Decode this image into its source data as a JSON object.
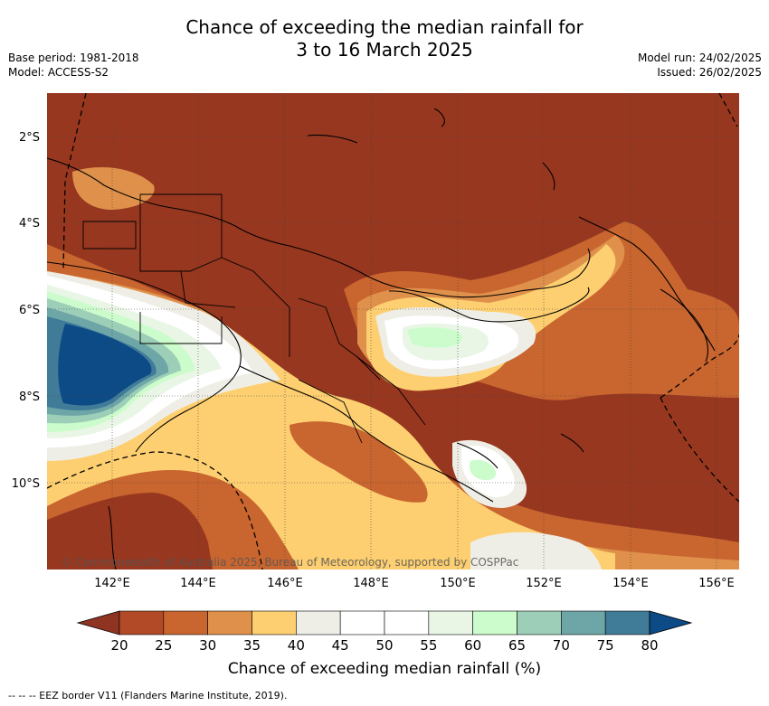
{
  "title_line1": "Chance of exceeding the median rainfall for",
  "title_line2": "3 to 16 March 2025",
  "base_period": "Base period: 1981-2018",
  "model": "Model: ACCESS-S2",
  "model_run": "Model run: 24/02/2025",
  "issued": "Issued: 26/02/2025",
  "lat_labels": [
    "2°S",
    "4°S",
    "6°S",
    "8°S",
    "10°S"
  ],
  "lon_labels": [
    "142°E",
    "144°E",
    "146°E",
    "148°E",
    "150°E",
    "152°E",
    "154°E",
    "156°E"
  ],
  "copyright": "© Commonwealth of Australia 2025, Bureau of Meteorology, supported by COSPPac",
  "colorbar": {
    "ticks": [
      "20",
      "25",
      "30",
      "35",
      "40",
      "45",
      "50",
      "55",
      "60",
      "65",
      "70",
      "75",
      "80"
    ],
    "colors": [
      "#8f3322",
      "#b24a27",
      "#c9652f",
      "#df914b",
      "#fdcf70",
      "#efeee6",
      "#ffffff",
      "#ffffff",
      "#e9f6e6",
      "#ccfccc",
      "#9dcfb8",
      "#6ea6a8",
      "#407b98",
      "#0c4b86"
    ],
    "label": "Chance of exceeding median rainfall (%)"
  },
  "footer": "-- -- -- EEZ border V11 (Flanders Marine Institute, 2019)."
}
